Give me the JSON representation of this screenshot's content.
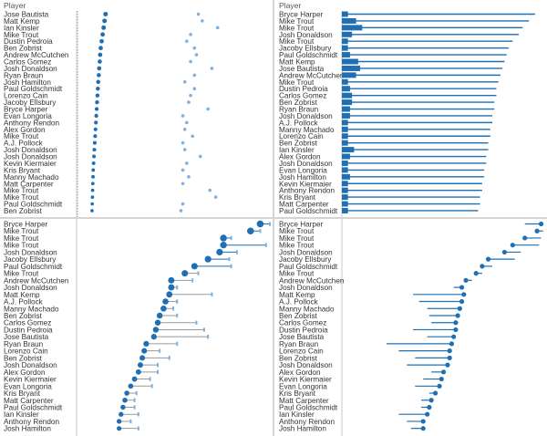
{
  "colors": {
    "dark": "#1f6fb2",
    "light": "#7fb0de",
    "grey": "#9a9a9a",
    "axis": "#c8c8c8",
    "text": "#333333"
  },
  "chart_data": [
    {
      "type": "scatter",
      "panel": "top-left",
      "header": "Player",
      "categories": [
        "Jose Bautista",
        "Matt Kemp",
        "Ian Kinsler",
        "Mike Trout",
        "Dustin Pedroia",
        "Ben Zobrist",
        "Andrew McCutchen",
        "Carlos Gomez",
        "Josh Donaldson",
        "Ryan Braun",
        "Josh Hamilton",
        "Paul Goldschmidt",
        "Lorenzo Cain",
        "Jacoby Ellsbury",
        "Bryce Harper",
        "Evan Longoria",
        "Anthony Rendon",
        "Alex Gordon",
        "Mike Trout",
        "A.J. Pollock",
        "Josh Donaldson",
        "Josh Donaldson",
        "Kevin Kiermaier",
        "Kris Bryant",
        "Manny Machado",
        "Matt Carpenter",
        "Mike Trout",
        "Mike Trout",
        "Paul Goldschmidt",
        "Ben Zobrist"
      ],
      "xlim": [
        0,
        10
      ],
      "series": [
        {
          "values": [
            1.5,
            1.45,
            1.4,
            1.35,
            1.3,
            1.25,
            1.22,
            1.2,
            1.17,
            1.15,
            1.12,
            1.1,
            1.08,
            1.06,
            1.04,
            1.02,
            1.0,
            0.98,
            0.96,
            0.94,
            0.92,
            0.9,
            0.88,
            0.86,
            0.85,
            0.84,
            0.83,
            0.82,
            0.81,
            0.8
          ]
        },
        {
          "values": [
            6.3,
            6.5,
            7.3,
            5.9,
            5.7,
            6.1,
            6.2,
            5.9,
            7.0,
            6.1,
            5.6,
            6.1,
            5.9,
            5.8,
            6.8,
            5.5,
            5.7,
            5.6,
            6.0,
            5.5,
            5.6,
            6.4,
            5.7,
            5.5,
            5.8,
            5.5,
            6.9,
            7.2,
            5.5,
            5.4
          ]
        }
      ]
    },
    {
      "type": "bar",
      "panel": "top-right",
      "header": "Player",
      "categories": [
        "Bryce Harper",
        "Mike Trout",
        "Mike Trout",
        "Josh Donaldson",
        "Mike Trout",
        "Jacoby Ellsbury",
        "Paul Goldschmidt",
        "Matt Kemp",
        "Jose Bautista",
        "Andrew McCutchen",
        "Mike Trout",
        "Dustin Pedroia",
        "Carlos Gomez",
        "Ben Zobrist",
        "Ryan Braun",
        "Josh Donaldson",
        "A.J. Pollock",
        "Manny Machado",
        "Lorenzo Cain",
        "Ben Zobrist",
        "Ian Kinsler",
        "Alex Gordon",
        "Josh Donaldson",
        "Evan Longoria",
        "Josh Hamilton",
        "Kevin Kiermaier",
        "Anthony Rendon",
        "Kris Bryant",
        "Matt Carpenter",
        "Paul Goldschmidt"
      ],
      "xlim": [
        0,
        10
      ],
      "series": [
        {
          "values": [
            9.5,
            9.2,
            8.9,
            8.7,
            8.4,
            8.2,
            8.1,
            8.0,
            7.9,
            7.8,
            7.7,
            7.6,
            7.6,
            7.5,
            7.5,
            7.4,
            7.4,
            7.3,
            7.3,
            7.2,
            7.2,
            7.1,
            7.1,
            7.0,
            7.0,
            6.9,
            6.9,
            6.8,
            6.8,
            6.7
          ]
        },
        {
          "values": [
            0.3,
            0.7,
            1.0,
            0.5,
            0.3,
            0.3,
            0.4,
            0.8,
            0.9,
            0.7,
            0.3,
            0.4,
            0.5,
            0.5,
            0.4,
            0.4,
            0.3,
            0.3,
            0.3,
            0.3,
            0.6,
            0.4,
            0.3,
            0.3,
            0.4,
            0.3,
            0.3,
            0.3,
            0.3,
            0.3
          ]
        }
      ]
    },
    {
      "type": "scatter",
      "panel": "bottom-left",
      "categories": [
        "Bryce Harper",
        "Mike Trout",
        "Mike Trout",
        "Mike Trout",
        "Josh Donaldson",
        "Jacoby Ellsbury",
        "Paul Goldschmidt",
        "Mike Trout",
        "Andrew McCutchen",
        "Josh Donaldson",
        "Matt Kemp",
        "A.J. Pollock",
        "Manny Machado",
        "Ben Zobrist",
        "Carlos Gomez",
        "Dustin Pedroia",
        "Jose Bautista",
        "Ryan Braun",
        "Lorenzo Cain",
        "Ben Zobrist",
        "Josh Donaldson",
        "Alex Gordon",
        "Kevin Kiermaier",
        "Evan Longoria",
        "Kris Bryant",
        "Matt Carpenter",
        "Paul Goldschmidt",
        "Ian Kinsler",
        "Anthony Rendon",
        "Josh Hamilton"
      ],
      "xlim": [
        0,
        10
      ],
      "series": [
        {
          "values": [
            9.5,
            9.0,
            7.6,
            7.6,
            7.4,
            6.8,
            6.1,
            5.6,
            4.9,
            4.9,
            4.8,
            4.6,
            4.5,
            4.3,
            4.2,
            4.1,
            4.0,
            3.6,
            3.5,
            3.4,
            3.3,
            3.2,
            3.0,
            2.8,
            2.6,
            2.5,
            2.4,
            2.3,
            2.2,
            2.2
          ]
        },
        {
          "values": [
            10.0,
            9.5,
            8.0,
            9.8,
            8.3,
            7.9,
            8.0,
            6.3,
            6.0,
            5.2,
            7.0,
            5.2,
            5.0,
            5.2,
            6.2,
            6.6,
            6.8,
            5.2,
            4.3,
            4.8,
            4.2,
            4.2,
            3.8,
            3.9,
            3.1,
            3.0,
            3.0,
            3.2,
            2.8,
            3.2
          ]
        }
      ]
    },
    {
      "type": "scatter",
      "panel": "bottom-right",
      "categories": [
        "Bryce Harper",
        "Mike Trout",
        "Mike Trout",
        "Mike Trout",
        "Josh Donaldson",
        "Jacoby Ellsbury",
        "Paul Goldschmidt",
        "Mike Trout",
        "Andrew McCutchen",
        "Josh Donaldson",
        "Matt Kemp",
        "A.J. Pollock",
        "Manny Machado",
        "Ben Zobrist",
        "Carlos Gomez",
        "Dustin Pedroia",
        "Jose Bautista",
        "Ryan Braun",
        "Lorenzo Cain",
        "Ben Zobrist",
        "Josh Donaldson",
        "Alex Gordon",
        "Kevin Kiermaier",
        "Evan Longoria",
        "Kris Bryant",
        "Matt Carpenter",
        "Paul Goldschmidt",
        "Ian Kinsler",
        "Anthony Rendon",
        "Josh Hamilton"
      ],
      "xlim": [
        0,
        10
      ],
      "series": [
        {
          "values": [
            9.8,
            9.6,
            9.0,
            8.4,
            8.0,
            7.2,
            6.9,
            6.6,
            6.1,
            5.9,
            6.0,
            5.9,
            5.8,
            5.7,
            5.6,
            5.6,
            5.5,
            5.4,
            5.3,
            5.3,
            5.2,
            5.0,
            4.9,
            4.8,
            4.6,
            4.4,
            4.3,
            4.2,
            4.0,
            4.0
          ]
        },
        {
          "values": [
            9.0,
            9.9,
            9.8,
            9.7,
            8.8,
            8.5,
            7.4,
            6.9,
            6.4,
            5.5,
            3.5,
            3.8,
            4.2,
            4.3,
            4.4,
            3.5,
            4.2,
            2.2,
            2.8,
            3.6,
            3.2,
            4.4,
            4.0,
            3.6,
            4.3,
            3.9,
            3.9,
            2.8,
            3.2,
            3.4
          ]
        }
      ]
    }
  ]
}
